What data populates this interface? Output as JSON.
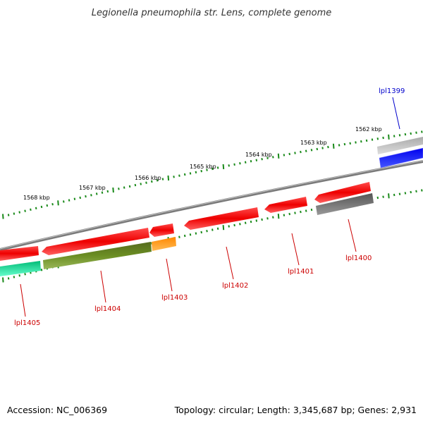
{
  "title": "Legionella pneumophila str. Lens, complete genome",
  "footer": {
    "accession": "Accession: NC_006369",
    "summary": "Topology: circular; Length: 3,345,687 bp; Genes: 2,931"
  },
  "scale_labels": [
    "1562 kbp",
    "1563 kbp",
    "1564 kbp",
    "1565 kbp",
    "1566 kbp",
    "1567 kbp",
    "1568 kbp"
  ],
  "colors": {
    "backbone": "#8c8c8c",
    "tick": "#1a8a1a",
    "red_gene": "#ee0000",
    "olive_gene": "#6b8e23",
    "orange_gene": "#ff9900",
    "teal_gene": "#00cc88",
    "grey_gene": "#666666",
    "light_grey_gene": "#bbbbbb",
    "blue_gene": "#0000ff",
    "red_label": "#cc0000",
    "blue_label": "#0000cc"
  },
  "genes": [
    {
      "label": "lpl1399",
      "color": "blue"
    },
    {
      "label": "lpl1400",
      "color": "red"
    },
    {
      "label": "lpl1401",
      "color": "red"
    },
    {
      "label": "lpl1402",
      "color": "red"
    },
    {
      "label": "lpl1403",
      "color": "red"
    },
    {
      "label": "lpl1404",
      "color": "red"
    },
    {
      "label": "lpl1405",
      "color": "red"
    }
  ]
}
